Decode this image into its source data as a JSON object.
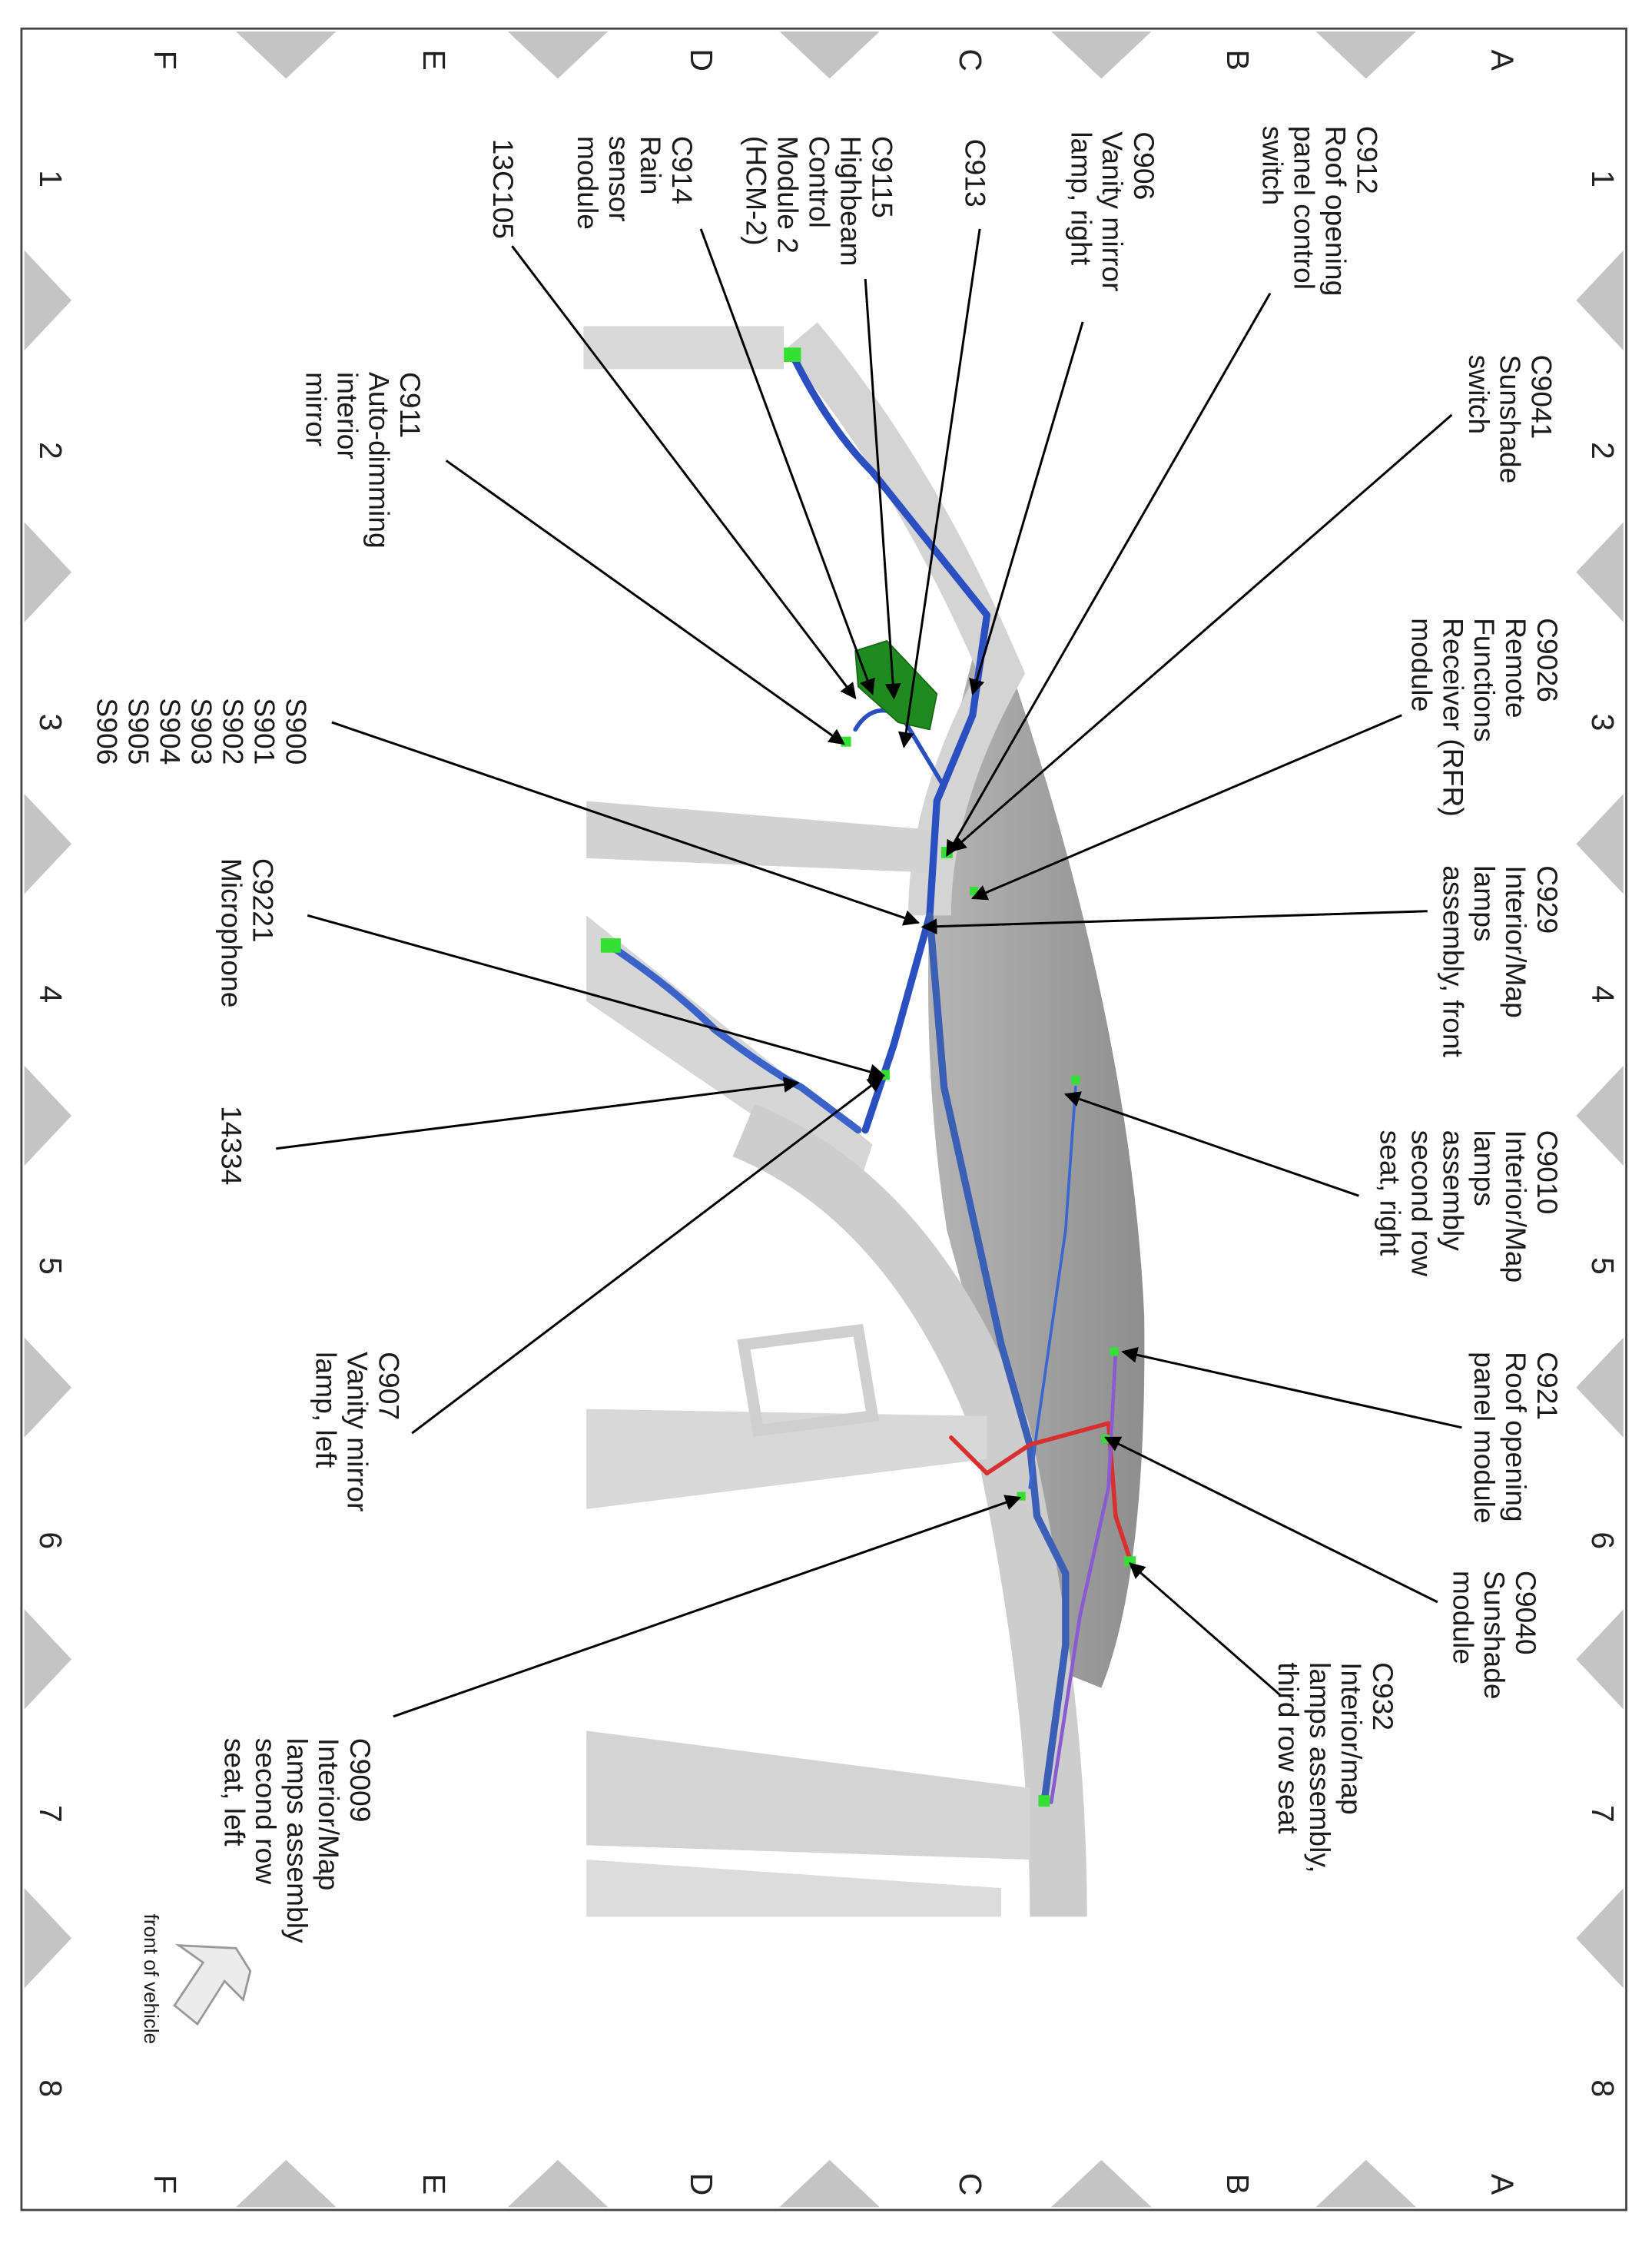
{
  "grid": {
    "letters": [
      "A",
      "B",
      "C",
      "D",
      "E",
      "F"
    ],
    "numbers": [
      "1",
      "2",
      "3",
      "4",
      "5",
      "6",
      "7",
      "8"
    ]
  },
  "labels": {
    "c912": "C912\nRoof opening\npanel control\nswitch",
    "c9041": "C9041\nSunshade\nswitch",
    "c906": "C906\nVanity mirror\nlamp, right",
    "c913": "C913",
    "c9115": "C9115\nHighbeam\nControl\nModule 2\n(HCM-2)",
    "c914": "C914\nRain\nsensor\nmodule",
    "c13c105": "13C105",
    "c911": "C911\nAuto-dimming\ninterior\nmirror",
    "c9026": "C9026\nRemote\nFunctions\nReceiver (RFR)\nmodule",
    "splices": "S900\nS901\nS902\nS903\nS904\nS905\nS906",
    "c929": "C929\nInterior/Map\nlamps\nassembly, front",
    "c9221": "C9221\nMicrophone",
    "c14334": "14334",
    "c9010": "C9010\nInterior/Map\nlamps\nassembly\nsecond row\nseat, right",
    "c907": "C907\nVanity mirror\nlamp, left",
    "c921": "C921\nRoof opening\npanel module",
    "c9040": "C9040\nSunshade\nmodule",
    "c932": "C932\nInterior/map\nlamps assembly,\nthird row seat",
    "c9009": "C9009\nInterior/Map\nlamps assembly\nsecond row\nseat, left",
    "front": "front of vehicle"
  },
  "colors": {
    "harness_blue": "#2a4fc0",
    "harness_red": "#d83030",
    "harness_purple": "#8a5ad0",
    "connector_green": "#33e033",
    "module_green": "#1f8a1f",
    "body_gray": "#cfcfcf",
    "roof_gray": "#9b9b9b"
  },
  "icons": {
    "front_arrow": "arrow-outline-icon"
  }
}
